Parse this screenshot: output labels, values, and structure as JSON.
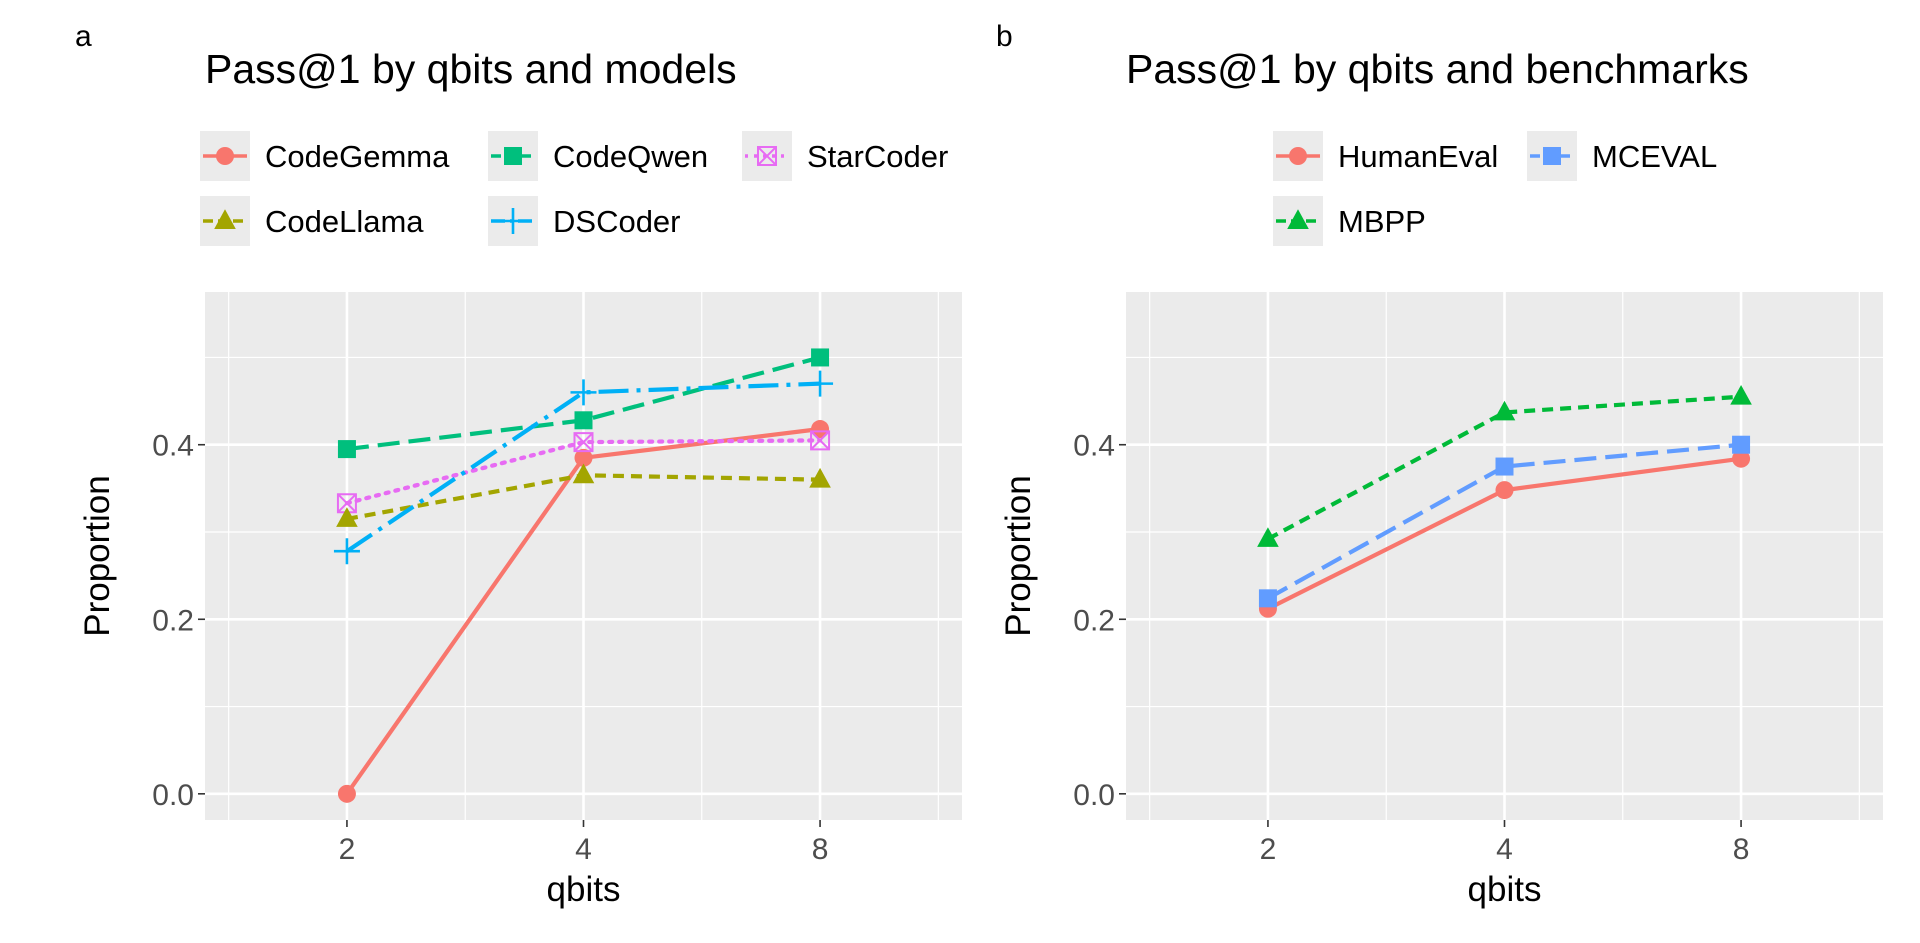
{
  "chart_data": [
    {
      "type": "line",
      "panel_label": "a",
      "title": "Pass@1 by qbits and models",
      "xlabel": "qbits",
      "ylabel": "Proportion",
      "categories": [
        "2",
        "4",
        "8"
      ],
      "yticks": [
        "0.0",
        "0.2",
        "0.4"
      ],
      "ylim": [
        -0.03,
        0.575
      ],
      "grid": true,
      "legend_position": "top",
      "series": [
        {
          "name": "CodeGemma",
          "color": "#F8766D",
          "marker": "circle",
          "linestyle": "solid",
          "values": [
            0.0,
            0.385,
            0.418
          ]
        },
        {
          "name": "CodeQwen",
          "color": "#00BF7D",
          "marker": "square",
          "linestyle": "longdash",
          "values": [
            0.395,
            0.428,
            0.5
          ]
        },
        {
          "name": "StarCoder",
          "color": "#E76BF3",
          "marker": "square-cross",
          "linestyle": "dotted",
          "values": [
            0.333,
            0.403,
            0.405
          ]
        },
        {
          "name": "CodeLlama",
          "color": "#A3A500",
          "marker": "triangle",
          "linestyle": "dashed",
          "values": [
            0.315,
            0.365,
            0.36
          ]
        },
        {
          "name": "DSCoder",
          "color": "#00B0F6",
          "marker": "plus",
          "linestyle": "dashed2",
          "values": [
            0.278,
            0.46,
            0.47
          ]
        }
      ]
    },
    {
      "type": "line",
      "panel_label": "b",
      "title": "Pass@1 by qbits and benchmarks",
      "xlabel": "qbits",
      "ylabel": "Proportion",
      "categories": [
        "2",
        "4",
        "8"
      ],
      "yticks": [
        "0.0",
        "0.2",
        "0.4"
      ],
      "ylim": [
        -0.03,
        0.575
      ],
      "grid": true,
      "legend_position": "top",
      "series": [
        {
          "name": "HumanEval",
          "color": "#F8766D",
          "marker": "circle",
          "linestyle": "solid",
          "values": [
            0.212,
            0.348,
            0.384
          ]
        },
        {
          "name": "MCEVAL",
          "color": "#619CFF",
          "marker": "square",
          "linestyle": "longdash",
          "values": [
            0.224,
            0.375,
            0.4
          ]
        },
        {
          "name": "MBPP",
          "color": "#00BA38",
          "marker": "triangle",
          "linestyle": "dashed",
          "values": [
            0.292,
            0.437,
            0.455
          ]
        }
      ]
    }
  ]
}
